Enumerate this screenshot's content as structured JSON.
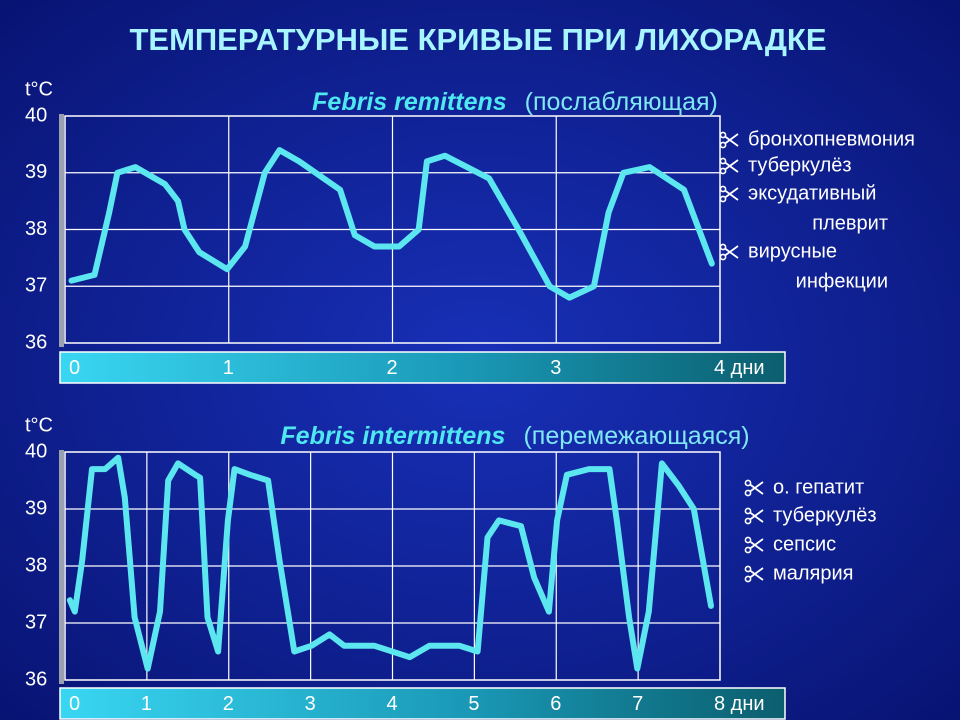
{
  "title": "ТЕМПЕРАТУРНЫЕ  КРИВЫЕ ПРИ ЛИХОРАДКЕ",
  "chart_data": [
    {
      "type": "line",
      "title": "Febris  remittens",
      "subtitle": "(послабляющая)",
      "ylabel": "t°C",
      "color": "#5ce6ef",
      "grid": true,
      "xlim": [
        0,
        4
      ],
      "xticks": [
        0,
        1,
        2,
        3,
        {
          "value": 4,
          "label": "4 дни"
        }
      ],
      "ylim": [
        36,
        40
      ],
      "yticks": [
        36,
        37,
        38,
        39,
        40
      ],
      "x": [
        0.04,
        0.18,
        0.27,
        0.32,
        0.43,
        0.61,
        0.69,
        0.73,
        0.82,
        0.99,
        1.1,
        1.22,
        1.31,
        1.43,
        1.68,
        1.77,
        1.89,
        2.04,
        2.16,
        2.21,
        2.32,
        2.59,
        2.77,
        2.96,
        3.08,
        3.23,
        3.32,
        3.41,
        3.57,
        3.78,
        3.95
      ],
      "values": [
        37.1,
        37.2,
        38.3,
        39.0,
        39.1,
        38.8,
        38.5,
        38.0,
        37.6,
        37.3,
        37.7,
        39.0,
        39.4,
        39.2,
        38.7,
        37.9,
        37.7,
        37.7,
        38.0,
        39.2,
        39.3,
        38.9,
        38.0,
        37.0,
        36.8,
        37.0,
        38.3,
        39.0,
        39.1,
        38.7,
        37.4
      ],
      "annotations": [
        [
          "бронхопневмония"
        ],
        [
          "туберкулёз"
        ],
        [
          "эксудативный",
          "плеврит"
        ],
        [
          "вирусные",
          "инфекции"
        ]
      ]
    },
    {
      "type": "line",
      "title": "Febris  intermittens",
      "subtitle": "(перемежающаяся)",
      "ylabel": "t°C",
      "color": "#5ce6ef",
      "grid": true,
      "xlim": [
        0,
        8
      ],
      "xticks": [
        0,
        1,
        2,
        3,
        4,
        5,
        6,
        7,
        {
          "value": 8,
          "label": "8 дни"
        }
      ],
      "ylim": [
        36,
        40
      ],
      "yticks": [
        36,
        37,
        38,
        39,
        40
      ],
      "x": [
        0.06,
        0.12,
        0.21,
        0.33,
        0.49,
        0.65,
        0.73,
        0.85,
        1.01,
        1.16,
        1.26,
        1.38,
        1.59,
        1.65,
        1.74,
        1.87,
        1.99,
        2.07,
        2.26,
        2.48,
        2.62,
        2.8,
        3.01,
        3.23,
        3.41,
        3.78,
        4.21,
        4.45,
        4.82,
        5.04,
        5.16,
        5.3,
        5.57,
        5.73,
        5.91,
        6.01,
        6.13,
        6.4,
        6.65,
        6.74,
        6.89,
        6.99,
        7.13,
        7.29,
        7.5,
        7.68,
        7.89
      ],
      "values": [
        37.4,
        37.2,
        38.1,
        39.7,
        39.7,
        39.9,
        39.2,
        37.1,
        36.2,
        37.2,
        39.5,
        39.8,
        39.6,
        39.55,
        37.1,
        36.5,
        38.8,
        39.7,
        39.6,
        39.5,
        38.1,
        36.5,
        36.6,
        36.8,
        36.6,
        36.6,
        36.4,
        36.6,
        36.6,
        36.5,
        38.5,
        38.8,
        38.7,
        37.8,
        37.2,
        38.8,
        39.6,
        39.7,
        39.7,
        38.8,
        37.1,
        36.2,
        37.2,
        39.8,
        39.4,
        39.0,
        37.3
      ],
      "annotations": [
        [
          "о. гепатит"
        ],
        [
          "туберкулёз"
        ],
        [
          "сепсис"
        ],
        [
          "малярия"
        ]
      ]
    }
  ]
}
